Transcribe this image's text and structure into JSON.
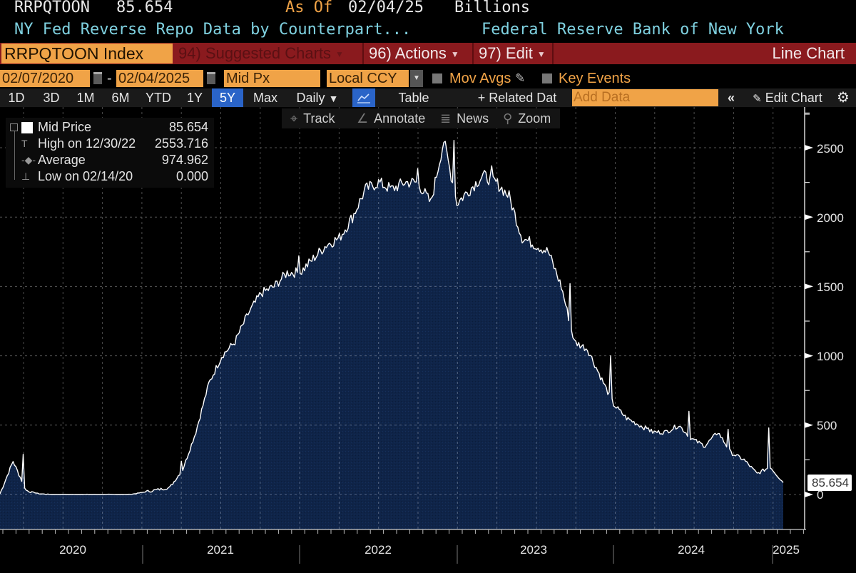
{
  "header": {
    "ticker": "RRPQTOON",
    "last_value": "85.654",
    "as_of_label": "As Of",
    "as_of_date": "02/04/25",
    "units": "Billions",
    "description": "NY Fed Reverse Repo Data by Counterpart...",
    "source": "Federal Reserve Bank of New York"
  },
  "command_bar": {
    "security": "RRPQTOON Index",
    "suggested_charts": "94) Suggested Charts",
    "actions": "96) Actions",
    "edit": "97) Edit",
    "chart_type": "Line Chart"
  },
  "options_row": {
    "start_date": "02/07/2020",
    "date_separator": "-",
    "end_date": "02/04/2025",
    "field": "Mid Px",
    "currency": "Local CCY",
    "mov_avgs": "Mov Avgs",
    "key_events": "Key Events"
  },
  "range_tabs": [
    {
      "label": "1D",
      "active": false
    },
    {
      "label": "3D",
      "active": false
    },
    {
      "label": "1M",
      "active": false
    },
    {
      "label": "6M",
      "active": false
    },
    {
      "label": "YTD",
      "active": false
    },
    {
      "label": "1Y",
      "active": false
    },
    {
      "label": "5Y",
      "active": true
    },
    {
      "label": "Max",
      "active": false
    }
  ],
  "toolbar": {
    "frequency": "Daily",
    "table": "Table",
    "related_data": "+ Related Dat",
    "add_data_placeholder": "Add Data",
    "collapse": "«",
    "edit_chart": "Edit Chart"
  },
  "tools": {
    "track": "Track",
    "annotate": "Annotate",
    "news": "News",
    "zoom": "Zoom"
  },
  "legend": {
    "series_label": "Mid Price",
    "series_value": "85.654",
    "high_label": "High on 12/30/22",
    "high_value": "2553.716",
    "average_label": "Average",
    "average_value": "974.962",
    "low_label": "Low on 02/14/20",
    "low_value": "0.000"
  },
  "colors": {
    "area_fill": "#0f2448",
    "line": "#ffffff",
    "accent_orange": "#f0a347",
    "command_bar_red": "#8a1a1e",
    "active_tab_blue": "#2a64c8",
    "description_cyan": "#7fd1e0"
  },
  "chart_data": {
    "type": "area",
    "title": "RRPQTOON Index - NY Fed Reverse Repo Data by Counterparty",
    "xlabel": "",
    "ylabel": "Billions",
    "ylim": [
      0,
      2750
    ],
    "yticks": [
      0,
      500,
      1000,
      1500,
      2000,
      2500
    ],
    "xtick_labels": [
      "2020",
      "2021",
      "2022",
      "2023",
      "2024",
      "2025"
    ],
    "grid": true,
    "legend_position": "top-left",
    "last_value_label": "85.654",
    "series": [
      {
        "name": "Mid Price",
        "dates": [
          "2020-02",
          "2020-03",
          "2020-04",
          "2020-05",
          "2020-06",
          "2020-09",
          "2020-12",
          "2021-03",
          "2021-04",
          "2021-05",
          "2021-06",
          "2021-07",
          "2021-08",
          "2021-09",
          "2021-10",
          "2021-11",
          "2021-12",
          "2022-01",
          "2022-02",
          "2022-03",
          "2022-04",
          "2022-05",
          "2022-06",
          "2022-07",
          "2022-08",
          "2022-09",
          "2022-10",
          "2022-11",
          "2022-12",
          "2023-01",
          "2023-02",
          "2023-03",
          "2023-04",
          "2023-05",
          "2023-06",
          "2023-07",
          "2023-08",
          "2023-09",
          "2023-10",
          "2023-11",
          "2023-12",
          "2024-01",
          "2024-02",
          "2024-03",
          "2024-04",
          "2024-05",
          "2024-06",
          "2024-07",
          "2024-08",
          "2024-09",
          "2024-10",
          "2024-11",
          "2024-12",
          "2025-01",
          "2025-02"
        ],
        "values": [
          5,
          240,
          30,
          5,
          0,
          0,
          0,
          50,
          180,
          450,
          800,
          1000,
          1100,
          1300,
          1450,
          1500,
          1600,
          1600,
          1700,
          1800,
          1850,
          2000,
          2200,
          2250,
          2200,
          2250,
          2250,
          2100,
          2553,
          2100,
          2200,
          2300,
          2250,
          2150,
          1850,
          1800,
          1750,
          1500,
          1100,
          1050,
          850,
          650,
          550,
          500,
          450,
          450,
          500,
          400,
          350,
          450,
          300,
          250,
          150,
          200,
          85.654
        ]
      }
    ]
  }
}
